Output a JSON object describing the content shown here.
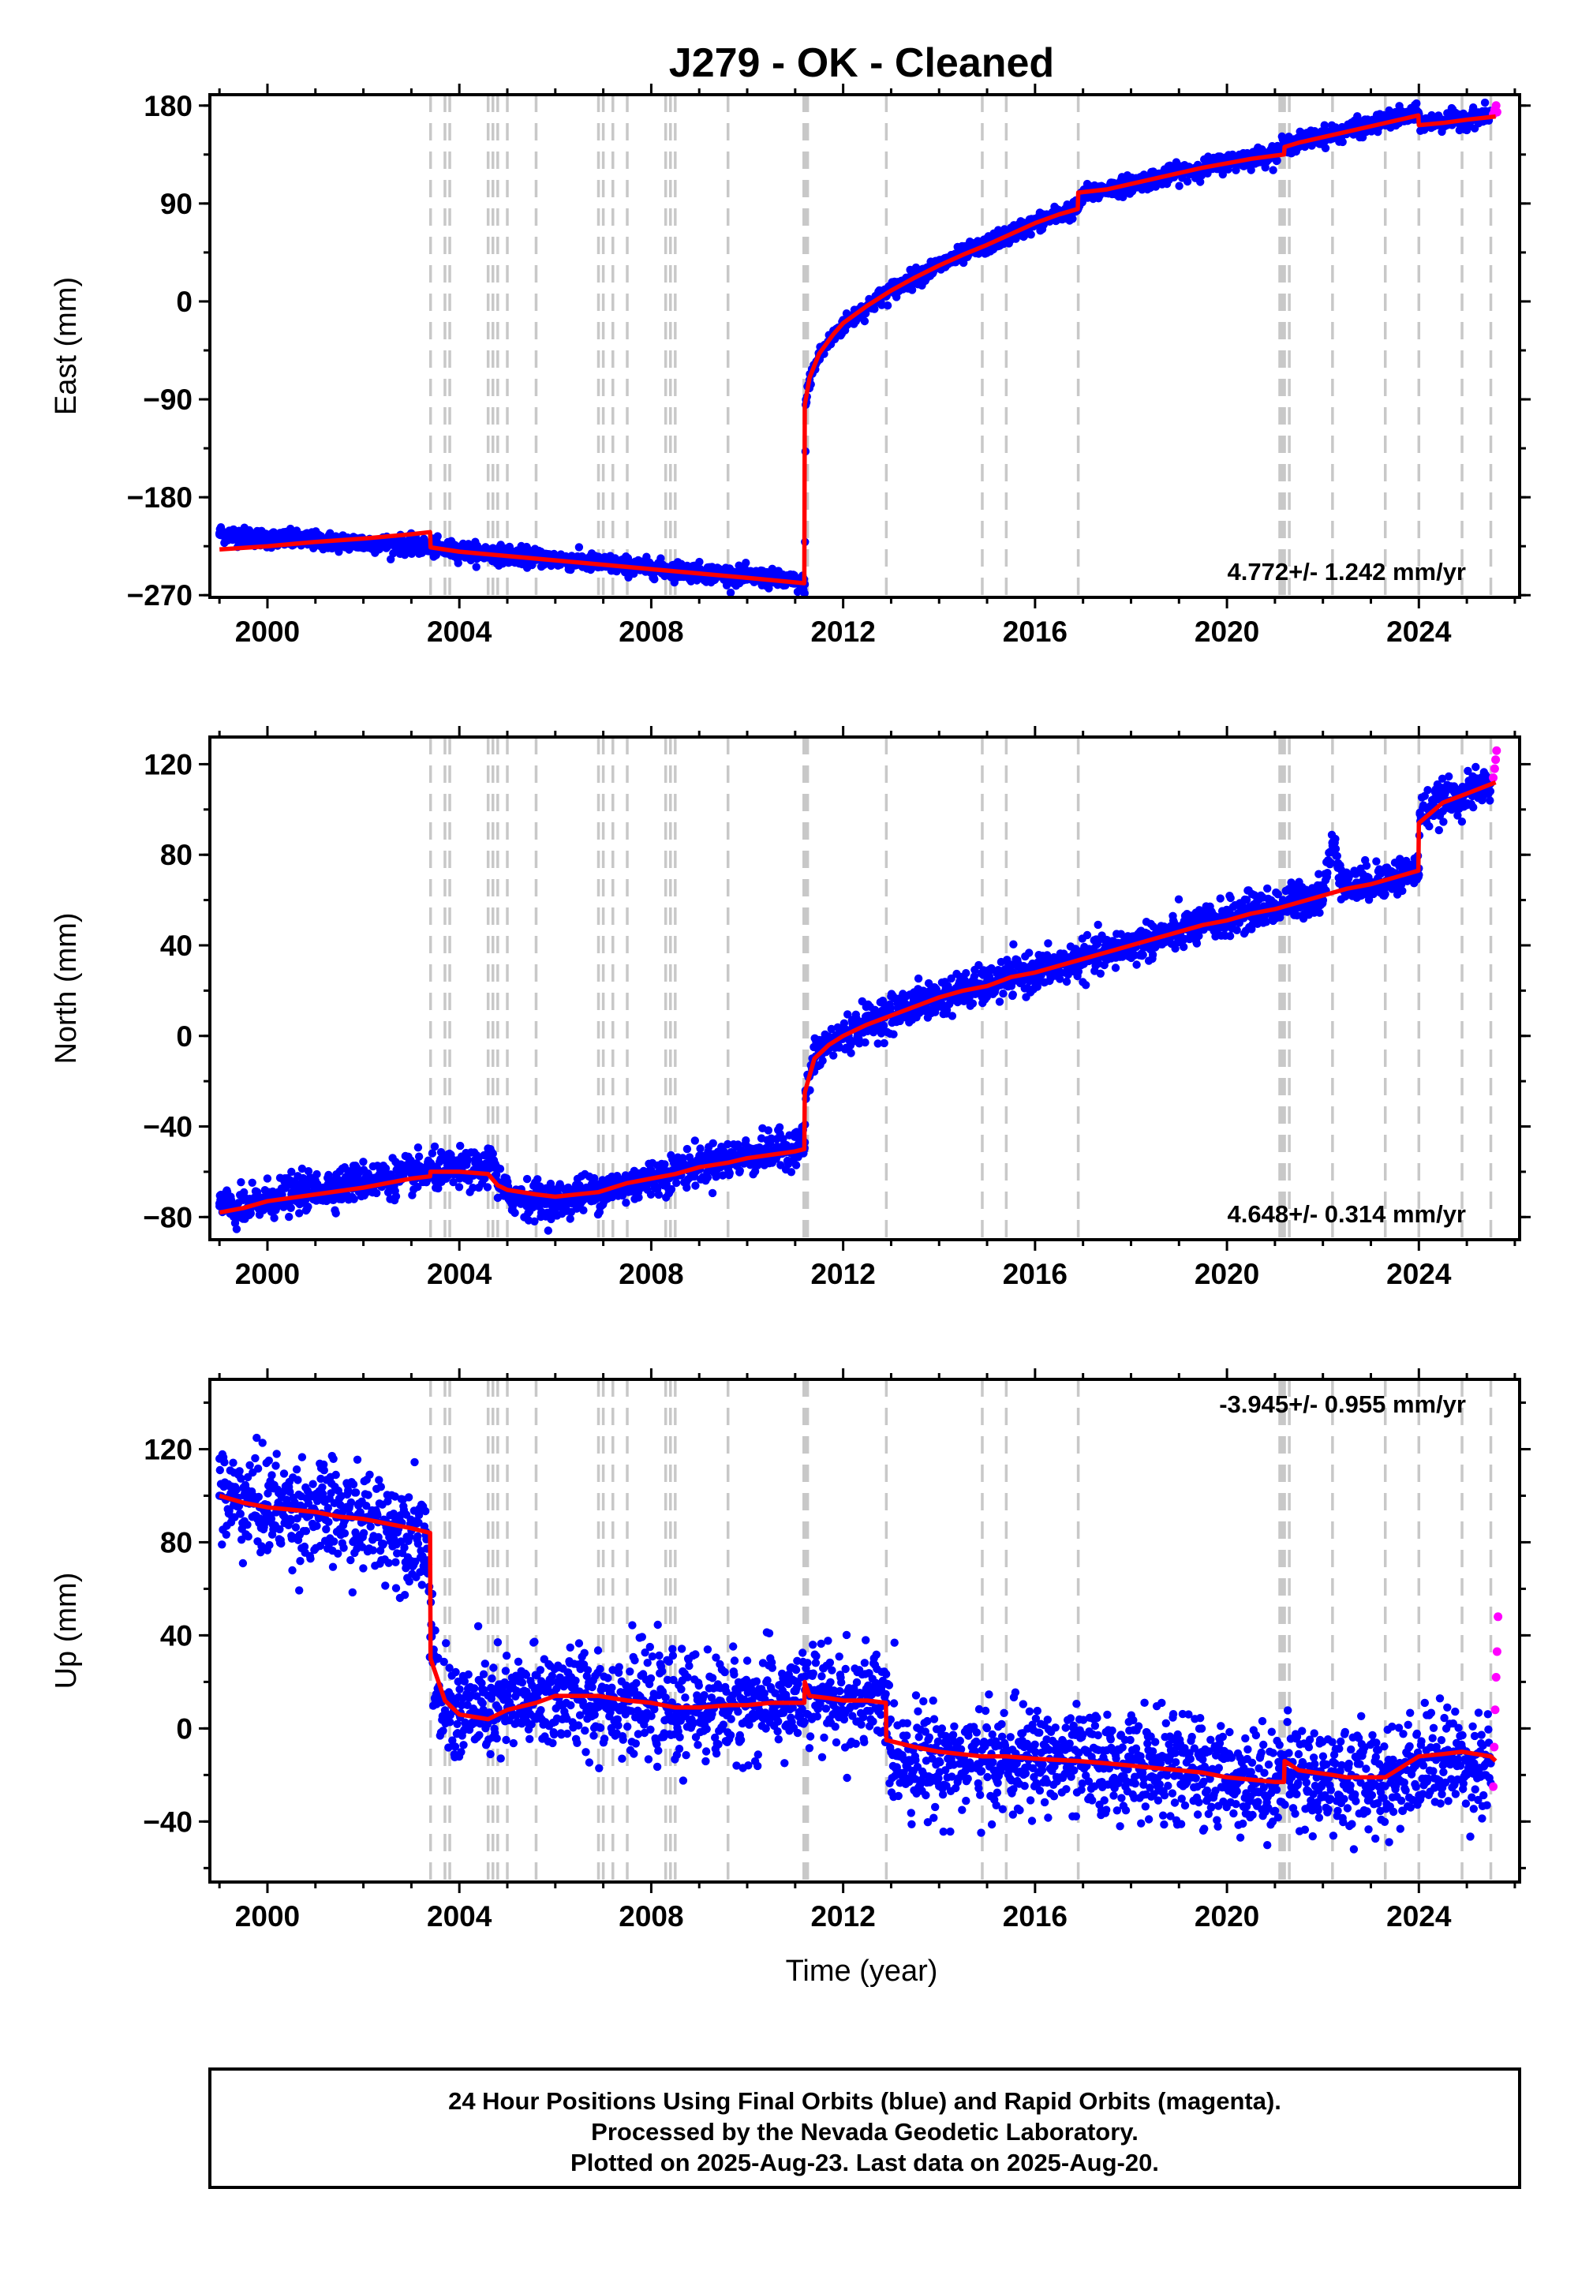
{
  "title": "J279  - OK - Cleaned",
  "footer": {
    "lines": [
      "24 Hour Positions Using Final Orbits (blue) and Rapid Orbits (magenta).",
      "Processed by the Nevada Geodetic Laboratory.",
      "Plotted on 2025-Aug-23. Last data on 2025-Aug-20."
    ]
  },
  "colors": {
    "final_orbits": "#0000ff",
    "rapid_orbits": "#ff00ff",
    "model": "#ff0000",
    "event_lines": "#c8c8c8",
    "frame": "#000000"
  },
  "chart_data": [
    {
      "type": "scatter",
      "ylabel": "East (mm)",
      "xlabel": "",
      "xlim": [
        1998.8,
        2026.1
      ],
      "ylim": [
        -272,
        190
      ],
      "xticks": [
        2000,
        2004,
        2008,
        2012,
        2016,
        2020,
        2024
      ],
      "yticks": [
        180,
        90,
        0,
        -90,
        -180,
        -270
      ],
      "ytick_labels": [
        "180",
        "90",
        "0",
        "−90",
        "−180",
        "−270"
      ],
      "rate_label": "4.772+/- 1.242 mm/yr",
      "rate_label_position": "bottom-right",
      "grid": false,
      "event_lines": [
        2003.4,
        2003.7,
        2003.8,
        2004.6,
        2004.7,
        2004.8,
        2005.0,
        2005.6,
        2006.9,
        2007.0,
        2007.2,
        2007.5,
        2008.3,
        2008.4,
        2008.5,
        2009.6,
        2011.18,
        2011.22,
        2011.26,
        2012.9,
        2014.9,
        2015.4,
        2016.9,
        2021.1,
        2021.15,
        2021.2,
        2021.3,
        2022.2,
        2023.3,
        2024.0,
        2024.9,
        2025.5
      ],
      "series": [
        {
          "name": "Final Orbits",
          "color": "#0000ff",
          "x": [
            1999.0,
            1999.5,
            2000.0,
            2000.5,
            2001.0,
            2001.5,
            2002.0,
            2002.5,
            2003.0,
            2003.4,
            2003.7,
            2004.0,
            2004.5,
            2005.0,
            2005.5,
            2006.0,
            2006.5,
            2007.0,
            2007.5,
            2008.0,
            2008.5,
            2009.0,
            2009.5,
            2010.0,
            2010.5,
            2011.0,
            2011.2,
            2011.22,
            2011.3,
            2011.5,
            2011.8,
            2012.0,
            2012.5,
            2013.0,
            2013.5,
            2014.0,
            2014.5,
            2015.0,
            2015.5,
            2016.0,
            2016.5,
            2016.9,
            2017.0,
            2017.5,
            2018.0,
            2018.5,
            2019.0,
            2019.5,
            2020.0,
            2020.5,
            2021.0,
            2021.2,
            2021.5,
            2022.0,
            2022.5,
            2023.0,
            2023.5,
            2024.0,
            2024.05,
            2024.5,
            2025.0,
            2025.5
          ],
          "y": [
            -213,
            -216,
            -218,
            -219,
            -220,
            -221,
            -222,
            -223,
            -224,
            -226,
            -228,
            -229,
            -231,
            -233,
            -235,
            -237,
            -239,
            -241,
            -243,
            -245,
            -247,
            -249,
            -251,
            -253,
            -255,
            -258,
            -260,
            -95,
            -72,
            -50,
            -32,
            -22,
            -5,
            10,
            22,
            33,
            43,
            52,
            62,
            72,
            80,
            86,
            98,
            103,
            108,
            113,
            118,
            123,
            128,
            132,
            136,
            143,
            147,
            152,
            157,
            162,
            168,
            172,
            163,
            166,
            168,
            172
          ]
        },
        {
          "name": "Rapid Orbits",
          "color": "#ff00ff",
          "x": [
            2025.55,
            2025.58,
            2025.61,
            2025.63
          ],
          "y": [
            172,
            176,
            180,
            174
          ]
        }
      ],
      "model": {
        "color": "#ff0000",
        "x": [
          1999.0,
          2000.0,
          2001.0,
          2002.0,
          2003.0,
          2003.39,
          2003.4,
          2004.0,
          2005.0,
          2006.0,
          2007.0,
          2008.0,
          2009.0,
          2010.0,
          2011.19,
          2011.2,
          2011.3,
          2011.5,
          2011.8,
          2012.0,
          2012.5,
          2013.0,
          2013.5,
          2014.0,
          2014.5,
          2015.0,
          2015.5,
          2016.0,
          2016.5,
          2016.89,
          2016.9,
          2017.5,
          2018.0,
          2018.5,
          2019.0,
          2019.5,
          2020.0,
          2020.5,
          2021.0,
          2021.19,
          2021.2,
          2021.5,
          2022.0,
          2022.5,
          2023.0,
          2023.5,
          2023.99,
          2024.0,
          2024.5,
          2025.0,
          2025.6
        ],
        "y": [
          -228,
          -225,
          -221,
          -218,
          -214,
          -212,
          -226,
          -230,
          -234,
          -238,
          -242,
          -246,
          -250,
          -254,
          -259,
          -95,
          -70,
          -48,
          -30,
          -20,
          -4,
          10,
          22,
          33,
          43,
          52,
          62,
          72,
          80,
          85,
          100,
          103,
          108,
          113,
          118,
          123,
          127,
          131,
          134,
          135,
          142,
          146,
          151,
          156,
          161,
          166,
          171,
          162,
          164,
          167,
          170
        ]
      }
    },
    {
      "type": "scatter",
      "ylabel": "North (mm)",
      "xlabel": "",
      "xlim": [
        1998.8,
        2026.1
      ],
      "ylim": [
        -90,
        132
      ],
      "xticks": [
        2000,
        2004,
        2008,
        2012,
        2016,
        2020,
        2024
      ],
      "yticks": [
        120,
        80,
        40,
        0,
        -40,
        -80
      ],
      "ytick_labels": [
        "120",
        "80",
        "40",
        "0",
        "−40",
        "−80"
      ],
      "rate_label": "4.648+/- 0.314 mm/yr",
      "rate_label_position": "bottom-right",
      "grid": false,
      "event_lines": [
        2003.4,
        2003.7,
        2003.8,
        2004.6,
        2004.7,
        2004.8,
        2005.0,
        2005.6,
        2006.9,
        2007.0,
        2007.2,
        2007.5,
        2008.3,
        2008.4,
        2008.5,
        2009.6,
        2011.18,
        2011.22,
        2011.26,
        2012.9,
        2014.9,
        2015.4,
        2016.9,
        2021.1,
        2021.15,
        2021.2,
        2021.3,
        2022.2,
        2023.3,
        2024.0,
        2024.9,
        2025.5
      ],
      "series": [
        {
          "name": "Final Orbits",
          "color": "#0000ff",
          "x": [
            1999.0,
            1999.3,
            1999.6,
            2000.0,
            2000.5,
            2001.0,
            2001.5,
            2002.0,
            2002.5,
            2003.0,
            2003.5,
            2004.0,
            2004.5,
            2004.7,
            2004.8,
            2005.0,
            2005.5,
            2006.0,
            2006.5,
            2007.0,
            2007.5,
            2008.0,
            2008.5,
            2009.0,
            2009.5,
            2010.0,
            2010.5,
            2011.0,
            2011.2,
            2011.22,
            2011.4,
            2011.6,
            2012.0,
            2012.5,
            2013.0,
            2013.5,
            2014.0,
            2014.5,
            2015.0,
            2015.5,
            2016.0,
            2016.5,
            2017.0,
            2017.5,
            2018.0,
            2018.5,
            2019.0,
            2019.5,
            2020.0,
            2020.5,
            2021.0,
            2021.5,
            2022.0,
            2022.2,
            2022.5,
            2023.0,
            2023.5,
            2024.0,
            2024.02,
            2024.5,
            2025.0,
            2025.5
          ],
          "y": [
            -74,
            -77,
            -76,
            -72,
            -70,
            -68,
            -66,
            -64,
            -63,
            -61,
            -60,
            -59,
            -60,
            -52,
            -66,
            -70,
            -72,
            -73,
            -70,
            -68,
            -66,
            -63,
            -60,
            -57,
            -55,
            -53,
            -51,
            -49,
            -47,
            -25,
            -10,
            -5,
            0,
            6,
            10,
            14,
            17,
            20,
            22,
            26,
            28,
            31,
            34,
            37,
            40,
            43,
            46,
            49,
            52,
            55,
            57,
            60,
            63,
            84,
            65,
            68,
            70,
            74,
            98,
            104,
            107,
            112
          ]
        },
        {
          "name": "Rapid Orbits",
          "color": "#ff00ff",
          "x": [
            2025.55,
            2025.58,
            2025.6,
            2025.62
          ],
          "y": [
            114,
            118,
            122,
            126
          ]
        }
      ],
      "model": {
        "color": "#ff0000",
        "x": [
          1999.0,
          1999.5,
          2000.0,
          2001.0,
          2002.0,
          2003.0,
          2003.39,
          2003.4,
          2004.0,
          2004.6,
          2004.8,
          2005.0,
          2005.6,
          2006.0,
          2006.9,
          2007.5,
          2008.0,
          2008.5,
          2009.0,
          2009.6,
          2010.0,
          2011.0,
          2011.19,
          2011.2,
          2011.4,
          2011.7,
          2012.0,
          2012.5,
          2013.0,
          2013.5,
          2014.0,
          2014.5,
          2015.0,
          2015.5,
          2016.0,
          2016.5,
          2017.0,
          2017.5,
          2018.0,
          2018.5,
          2019.0,
          2019.5,
          2020.0,
          2020.5,
          2021.0,
          2021.5,
          2022.0,
          2022.5,
          2023.0,
          2023.5,
          2023.99,
          2024.0,
          2024.5,
          2025.0,
          2025.6
        ],
        "y": [
          -78,
          -76,
          -73,
          -70,
          -67,
          -63,
          -62,
          -60,
          -60,
          -61,
          -66,
          -68,
          -70,
          -71,
          -69,
          -65,
          -63,
          -61,
          -58,
          -56,
          -54,
          -51,
          -50,
          -25,
          -10,
          -4,
          0,
          5,
          9,
          13,
          17,
          20,
          22,
          26,
          28,
          31,
          34,
          37,
          40,
          43,
          46,
          49,
          51,
          54,
          56,
          59,
          62,
          65,
          67,
          70,
          73,
          94,
          103,
          107,
          112
        ]
      }
    },
    {
      "type": "scatter",
      "ylabel": "Up (mm)",
      "xlabel": "Time (year)",
      "xlim": [
        1998.8,
        2026.1
      ],
      "ylim": [
        -66,
        150
      ],
      "xticks": [
        2000,
        2004,
        2008,
        2012,
        2016,
        2020,
        2024
      ],
      "yticks": [
        120,
        80,
        40,
        0,
        -40
      ],
      "ytick_labels": [
        "120",
        "80",
        "40",
        "0",
        "−40"
      ],
      "rate_label": "-3.945+/- 0.955 mm/yr",
      "rate_label_position": "top-right",
      "grid": false,
      "event_lines": [
        2003.4,
        2003.7,
        2003.8,
        2004.6,
        2004.7,
        2004.8,
        2005.0,
        2005.6,
        2006.9,
        2007.0,
        2007.2,
        2007.5,
        2008.3,
        2008.4,
        2008.5,
        2009.6,
        2011.18,
        2011.22,
        2011.26,
        2012.9,
        2014.9,
        2015.4,
        2016.9,
        2021.1,
        2021.15,
        2021.2,
        2021.3,
        2022.2,
        2023.3,
        2024.0,
        2024.9,
        2025.5
      ],
      "series": [
        {
          "name": "Final Orbits",
          "color": "#0000ff",
          "x": [
            1999.0,
            1999.3,
            1999.6,
            2000.0,
            2000.5,
            2001.0,
            2001.5,
            2002.0,
            2002.5,
            2003.0,
            2003.3,
            2003.5,
            2004.0,
            2004.5,
            2005.0,
            2005.5,
            2006.0,
            2006.5,
            2007.0,
            2007.5,
            2008.0,
            2008.5,
            2009.0,
            2009.5,
            2010.0,
            2010.5,
            2011.0,
            2011.3,
            2011.6,
            2012.0,
            2012.5,
            2012.9,
            2013.0,
            2013.5,
            2014.0,
            2014.5,
            2015.0,
            2015.5,
            2016.0,
            2016.5,
            2017.0,
            2017.5,
            2018.0,
            2018.5,
            2019.0,
            2019.5,
            2020.0,
            2020.5,
            2021.0,
            2021.2,
            2021.5,
            2022.0,
            2022.5,
            2023.0,
            2023.5,
            2024.0,
            2024.5,
            2025.0,
            2025.5
          ],
          "y": [
            100,
            98,
            97,
            96,
            94,
            93,
            91,
            89,
            87,
            85,
            83,
            12,
            6,
            8,
            9,
            12,
            14,
            13,
            13,
            12,
            10,
            8,
            9,
            9,
            10,
            11,
            12,
            14,
            13,
            12,
            12,
            11,
            -10,
            -12,
            -14,
            -14,
            -14,
            -15,
            -13,
            -14,
            -15,
            -16,
            -15,
            -17,
            -18,
            -19,
            -21,
            -22,
            -22,
            -18,
            -20,
            -21,
            -22,
            -22,
            -21,
            -14,
            -13,
            -14,
            -15
          ]
        },
        {
          "name": "Rapid Orbits",
          "color": "#ff00ff",
          "x": [
            2025.55,
            2025.57,
            2025.59,
            2025.61,
            2025.63,
            2025.65
          ],
          "y": [
            -25,
            -8,
            8,
            22,
            33,
            48
          ]
        }
      ],
      "model": {
        "color": "#ff0000",
        "x": [
          1999.0,
          1999.5,
          2000.0,
          2000.5,
          2001.0,
          2001.5,
          2002.0,
          2002.5,
          2003.0,
          2003.39,
          2003.4,
          2003.7,
          2004.0,
          2004.6,
          2005.0,
          2005.6,
          2006.0,
          2006.9,
          2007.5,
          2008.0,
          2008.5,
          2009.0,
          2009.6,
          2010.0,
          2010.5,
          2011.19,
          2011.2,
          2011.3,
          2011.7,
          2012.0,
          2012.5,
          2012.89,
          2012.9,
          2013.5,
          2014.0,
          2014.9,
          2015.4,
          2016.0,
          2016.9,
          2017.5,
          2018.0,
          2018.5,
          2019.0,
          2019.5,
          2020.0,
          2020.5,
          2021.0,
          2021.19,
          2021.2,
          2021.5,
          2022.2,
          2022.5,
          2023.3,
          2024.0,
          2024.5,
          2024.9,
          2025.5,
          2025.6
        ],
        "y": [
          100,
          97,
          95,
          94,
          93,
          91,
          90,
          88,
          86,
          84,
          30,
          12,
          6,
          4,
          8,
          11,
          14,
          14,
          12,
          11,
          9,
          9,
          10,
          10,
          11,
          11,
          20,
          14,
          13,
          12,
          12,
          11,
          -5,
          -8,
          -10,
          -12,
          -12,
          -13,
          -14,
          -15,
          -16,
          -17,
          -18,
          -19,
          -21,
          -22,
          -23,
          -23,
          -14,
          -18,
          -20,
          -21,
          -21,
          -12,
          -11,
          -10,
          -12,
          -14
        ]
      }
    }
  ]
}
